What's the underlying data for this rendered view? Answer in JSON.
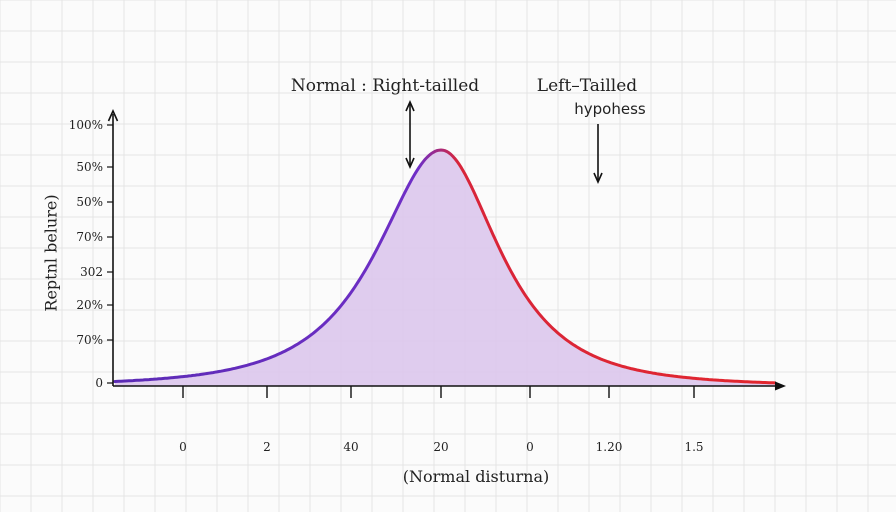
{
  "chart_data": {
    "type": "area",
    "title": "",
    "xlabel": "(Normal disturna)",
    "ylabel": "Reptnl belure)",
    "x_tick_labels": [
      "0",
      "2",
      "40",
      "20",
      "0",
      "1.20",
      "1.5"
    ],
    "y_tick_labels": [
      "0",
      "70%",
      "20%",
      "302",
      "70%",
      "50%",
      "50%",
      "100%"
    ],
    "series": [
      {
        "peak_x_label": "20",
        "color_left": "#6a2fc4",
        "color_right": "#e2262e",
        "fill": "#dcc7ec"
      }
    ],
    "grid": true,
    "annotations": [
      {
        "text": "Normal : Right-tailled",
        "arrow": "up-down"
      },
      {
        "text": "Left–Tailled",
        "arrow": "none"
      },
      {
        "text": "hypohess",
        "arrow": "down"
      }
    ]
  }
}
